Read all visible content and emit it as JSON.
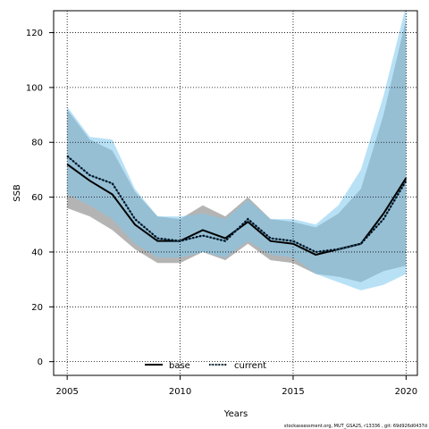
{
  "chart_data": {
    "type": "line",
    "xlabel": "Years",
    "ylabel": "SSB",
    "xlim": [
      2004.4,
      2020.5
    ],
    "ylim": [
      -5,
      128
    ],
    "xticks": [
      2005,
      2010,
      2015,
      2020
    ],
    "yticks": [
      0,
      20,
      40,
      60,
      80,
      100,
      120
    ],
    "grid": true,
    "legend_position": "bottom-center",
    "x": [
      2005,
      2006,
      2007,
      2008,
      2009,
      2010,
      2011,
      2012,
      2013,
      2014,
      2015,
      2016,
      2017,
      2018,
      2019,
      2020
    ],
    "series": [
      {
        "name": "base",
        "color": "#000000",
        "band_color": "#8c8c8c",
        "line_style": "solid",
        "values": [
          72,
          66,
          61,
          50,
          44,
          44,
          48,
          45,
          51,
          44,
          43,
          39,
          41,
          43,
          54,
          67
        ],
        "lower": [
          56,
          53,
          48,
          41,
          36,
          36,
          40,
          37,
          43,
          37,
          36,
          32,
          31,
          29,
          33,
          35
        ],
        "upper": [
          92,
          81,
          77,
          62,
          53,
          52,
          57,
          53,
          60,
          52,
          51,
          49,
          54,
          63,
          90,
          125
        ]
      },
      {
        "name": "current",
        "color": "#1a5b8a",
        "band_color": "#7ec8ef",
        "line_style": "dotted",
        "values": [
          75,
          68,
          65,
          52,
          45,
          44,
          46,
          44,
          52,
          45,
          44,
          40,
          41,
          43,
          52,
          66
        ],
        "lower": [
          61,
          57,
          52,
          43,
          38,
          38,
          40,
          38,
          44,
          39,
          38,
          32,
          29,
          26,
          28,
          32
        ],
        "upper": [
          93,
          82,
          81,
          63,
          53,
          53,
          54,
          52,
          59,
          52,
          52,
          50,
          57,
          70,
          97,
          130
        ]
      }
    ]
  },
  "footnote": "stockassessment.org, MUT_GSA25, r13336 , git: 69d926d0437d",
  "colors": {
    "grid": "#000000",
    "axes": "#000000",
    "background": "#ffffff"
  }
}
